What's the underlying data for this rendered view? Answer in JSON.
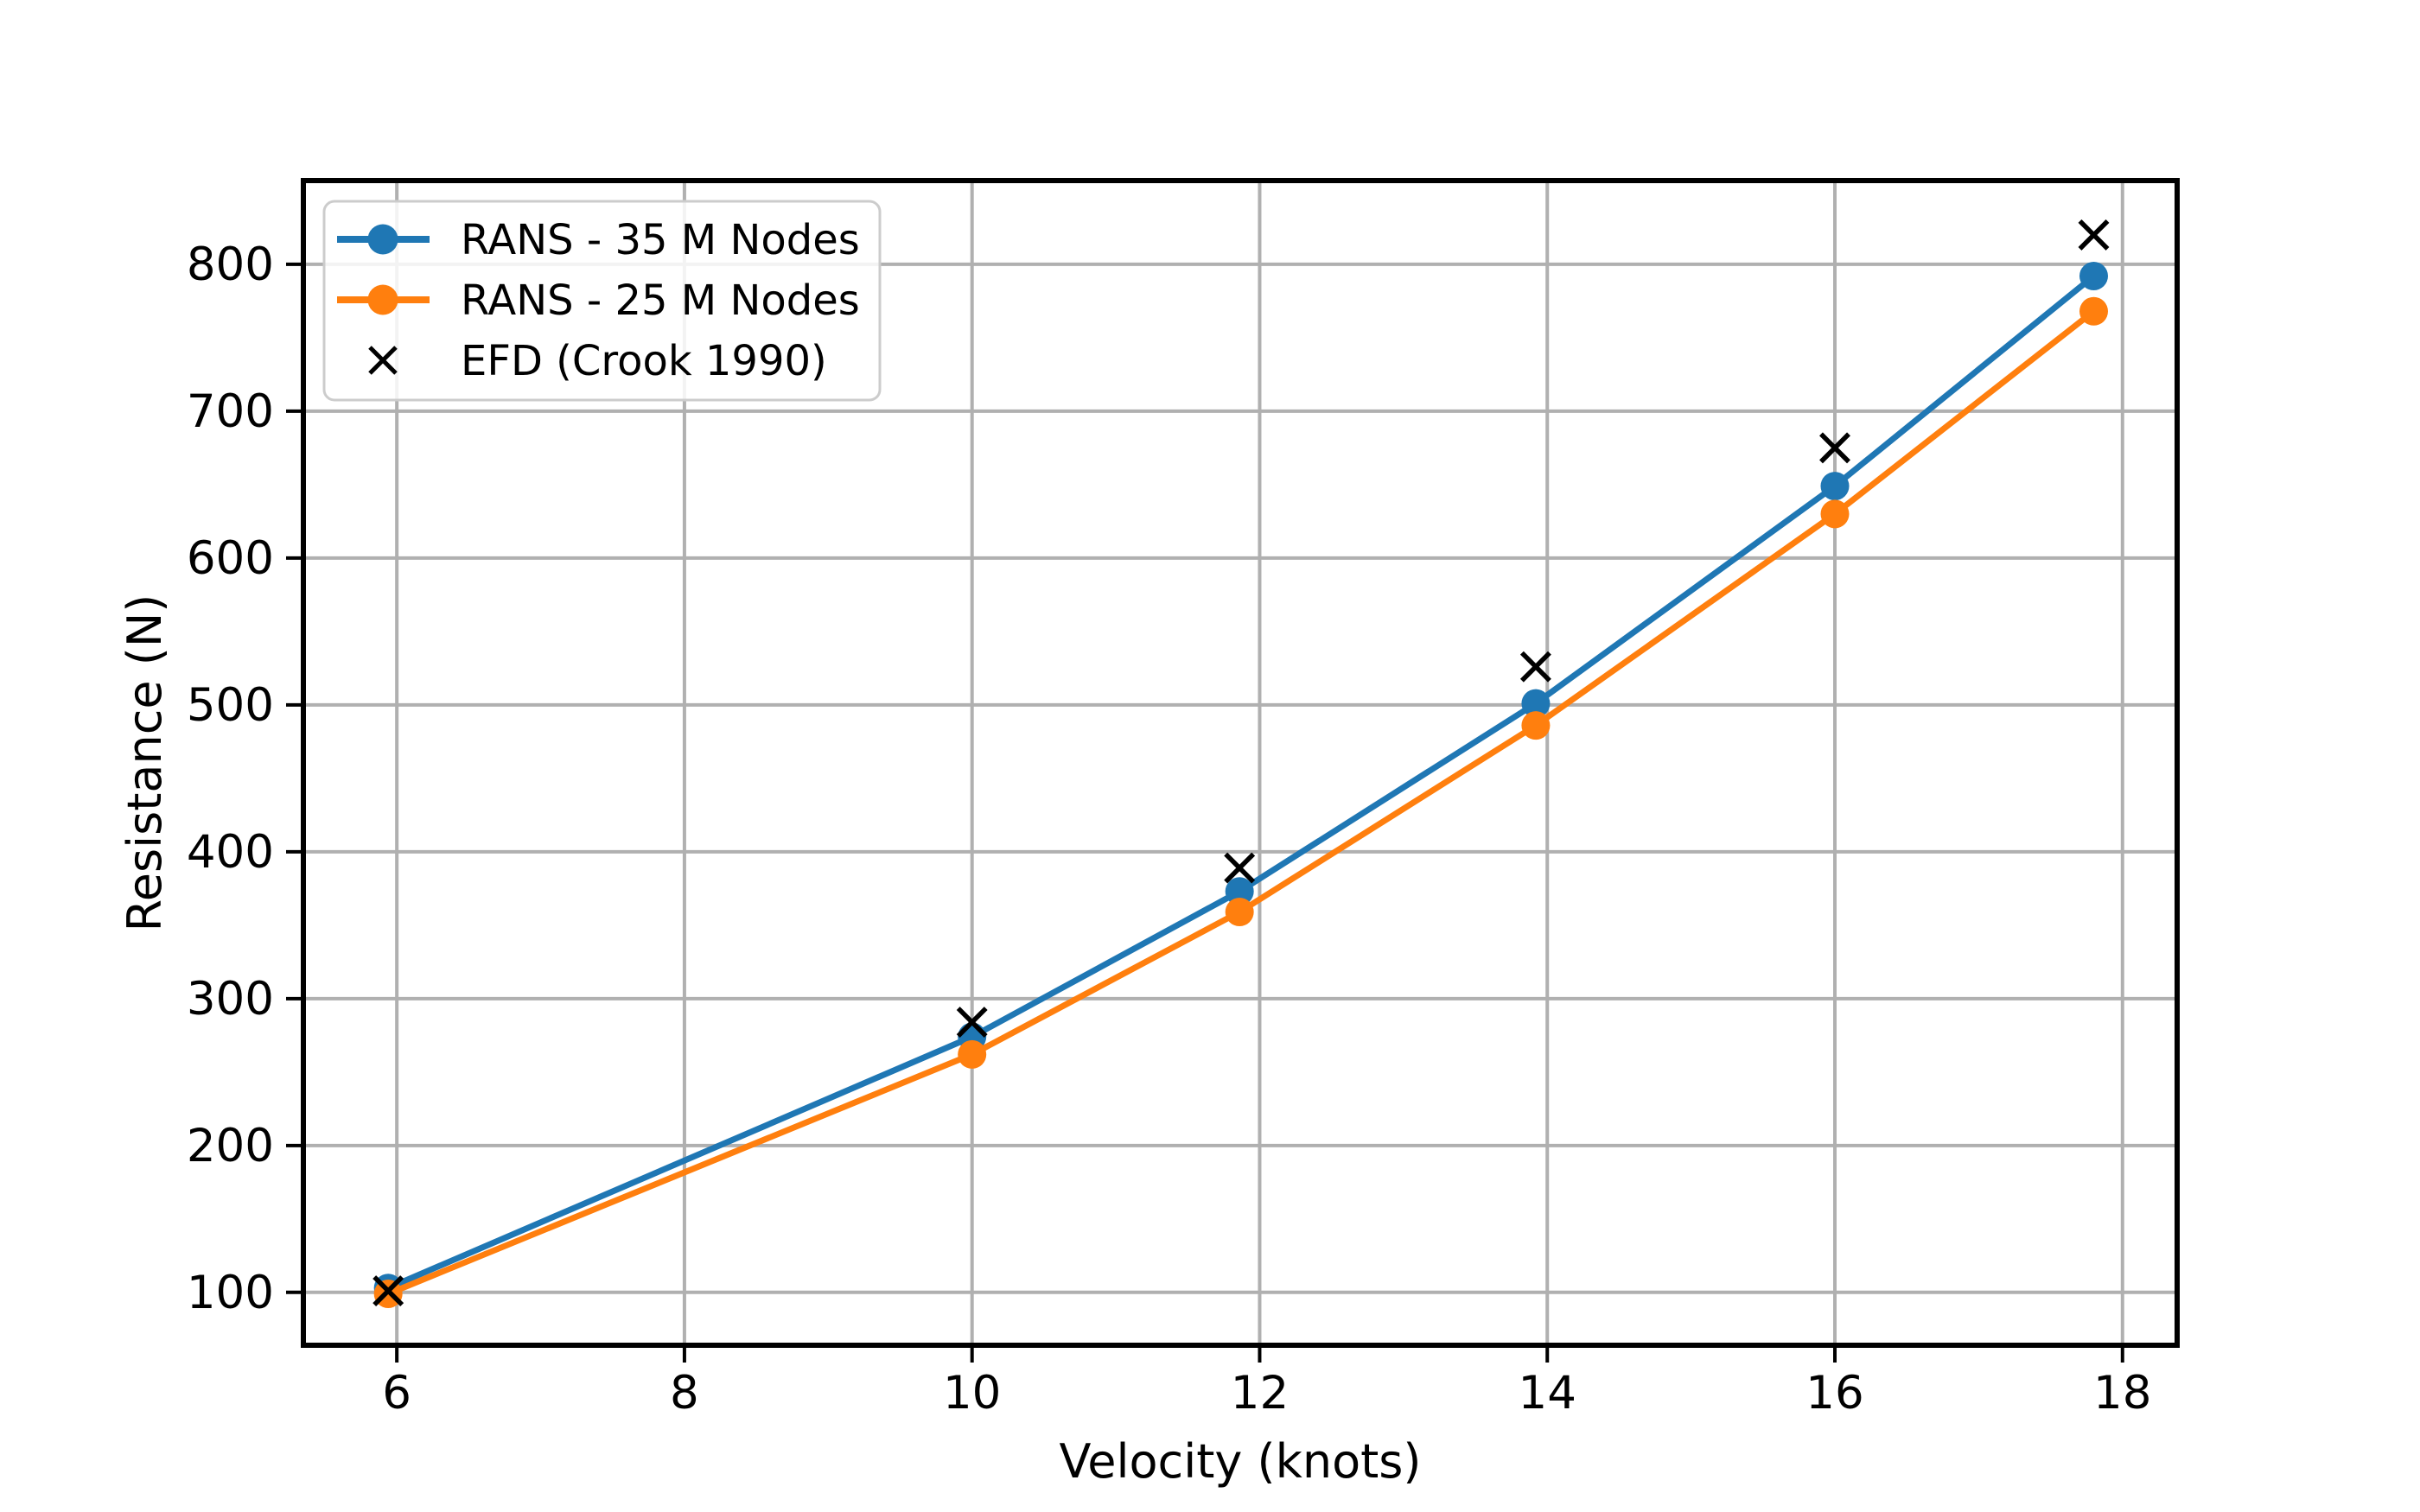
{
  "figure": {
    "background": "#ffffff",
    "spine_color": "#000000",
    "grid_color": "#b0b0b0",
    "tick_color": "#000000",
    "legend_edge_color": "#cccccc",
    "legend_face_color": "#ffffff"
  },
  "chart_data": {
    "type": "line",
    "title": "",
    "xlabel": "Velocity (knots)",
    "ylabel": "Resistance (N)",
    "xlim": [
      5.35,
      18.38
    ],
    "ylim": [
      64,
      857
    ],
    "x_ticks": [
      6,
      8,
      10,
      12,
      14,
      16,
      18
    ],
    "y_ticks": [
      100,
      200,
      300,
      400,
      500,
      600,
      700,
      800
    ],
    "grid": true,
    "legend_position": "upper left",
    "x": [
      5.94,
      10.0,
      11.86,
      13.92,
      16.0,
      17.8
    ],
    "series": [
      {
        "name": "RANS - 35 M Nodes",
        "color": "#1f77b4",
        "marker": "circle",
        "has_line": true,
        "values": [
          103,
          274,
          373,
          501,
          649,
          792
        ]
      },
      {
        "name": "RANS - 25 M Nodes",
        "color": "#ff7f0e",
        "marker": "circle",
        "has_line": true,
        "values": [
          99,
          262,
          359,
          486,
          630,
          768
        ]
      },
      {
        "name": "EFD (Crook 1990)",
        "color": "#000000",
        "marker": "x",
        "has_line": false,
        "values": [
          101,
          284,
          389,
          526,
          675,
          820
        ]
      }
    ]
  }
}
